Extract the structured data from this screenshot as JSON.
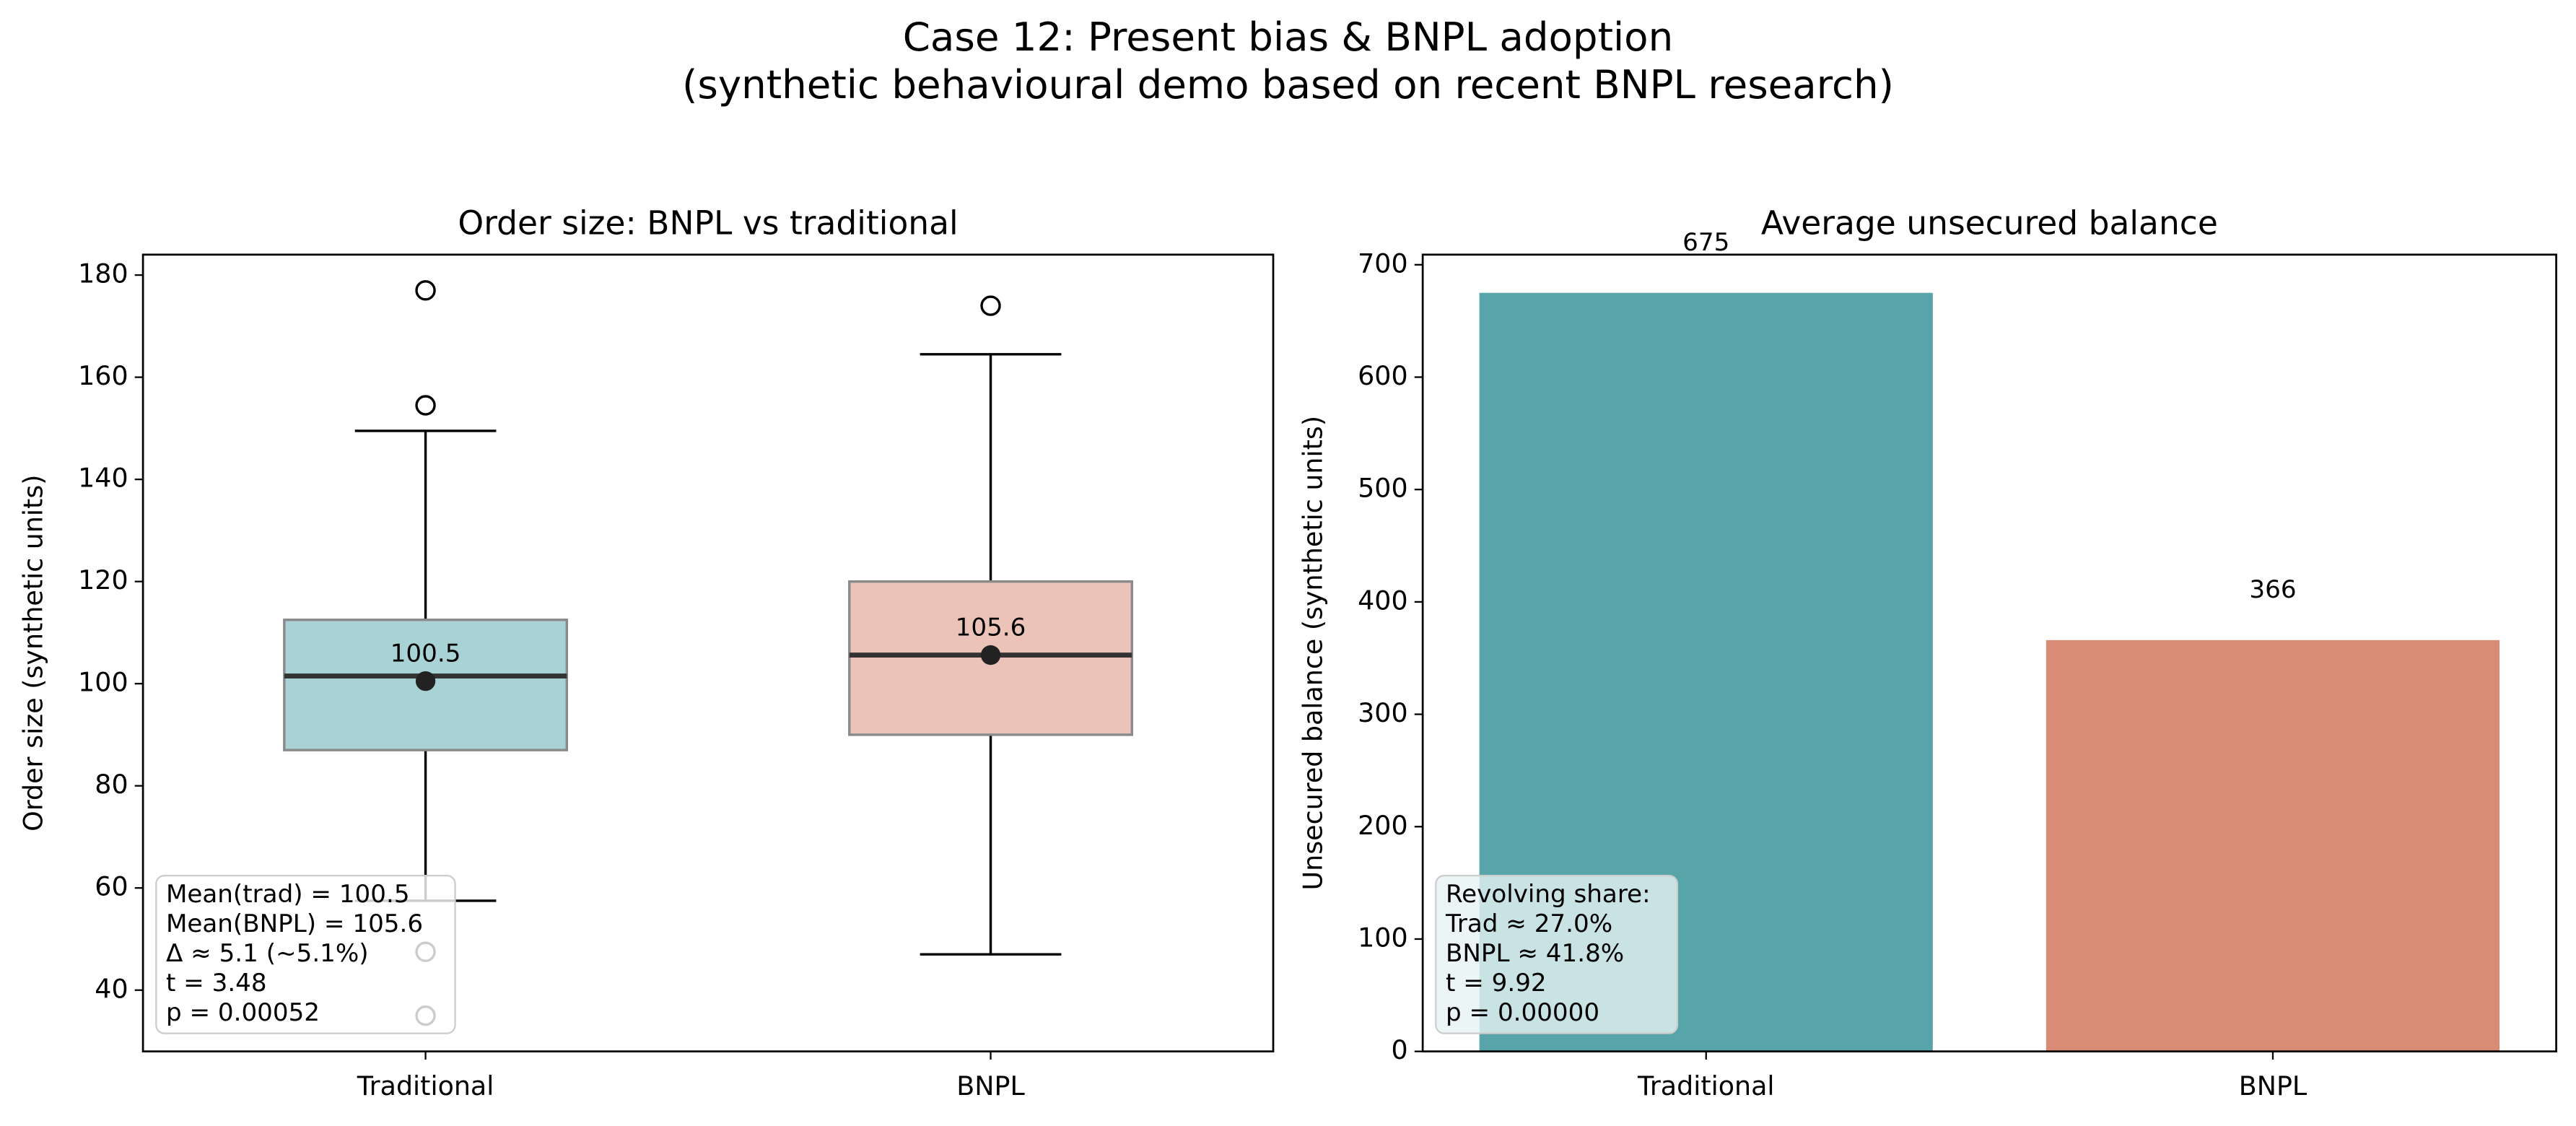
{
  "title": "Case 12: Present bias & BNPL adoption",
  "subtitle": "(synthetic behavioural demo based on recent BNPL research)",
  "chart_data": [
    {
      "type": "box",
      "title": "Order size: BNPL vs traditional",
      "ylabel": "Order size (synthetic units)",
      "categories": [
        "Traditional",
        "BNPL"
      ],
      "colors": [
        "#a9d2d4",
        "#ecc3b9"
      ],
      "boxes": [
        {
          "whisker_low": 57.5,
          "q1": 87,
          "median": 101.5,
          "q3": 112.5,
          "whisker_high": 149.5,
          "mean": 100.5,
          "outliers": [
            177,
            154.5,
            47.5,
            35
          ]
        },
        {
          "whisker_low": 47,
          "q1": 90,
          "median": 105.6,
          "q3": 120,
          "whisker_high": 164.5,
          "mean": 105.6,
          "outliers": [
            174
          ]
        }
      ],
      "ylim": [
        28,
        184
      ],
      "yticks": [
        40,
        60,
        80,
        100,
        120,
        140,
        160,
        180
      ],
      "annotation": [
        "Mean(trad) = 100.5",
        "Mean(BNPL) = 105.6",
        "Δ ≈ 5.1 (~5.1%)",
        "t = 3.48",
        "p = 0.00052"
      ]
    },
    {
      "type": "bar",
      "title": "Average unsecured balance",
      "ylabel": "Unsecured balance (synthetic units)",
      "categories": [
        "Traditional",
        "BNPL"
      ],
      "values": [
        675,
        366
      ],
      "colors": [
        "#57a5a9",
        "#d98b76"
      ],
      "ylim": [
        0,
        709
      ],
      "yticks": [
        0,
        100,
        200,
        300,
        400,
        500,
        600,
        700
      ],
      "annotation": [
        "Revolving share:",
        "Trad ≈ 27.0%",
        "BNPL ≈ 41.8%",
        "t = 9.92",
        "p = 0.00000"
      ]
    }
  ]
}
